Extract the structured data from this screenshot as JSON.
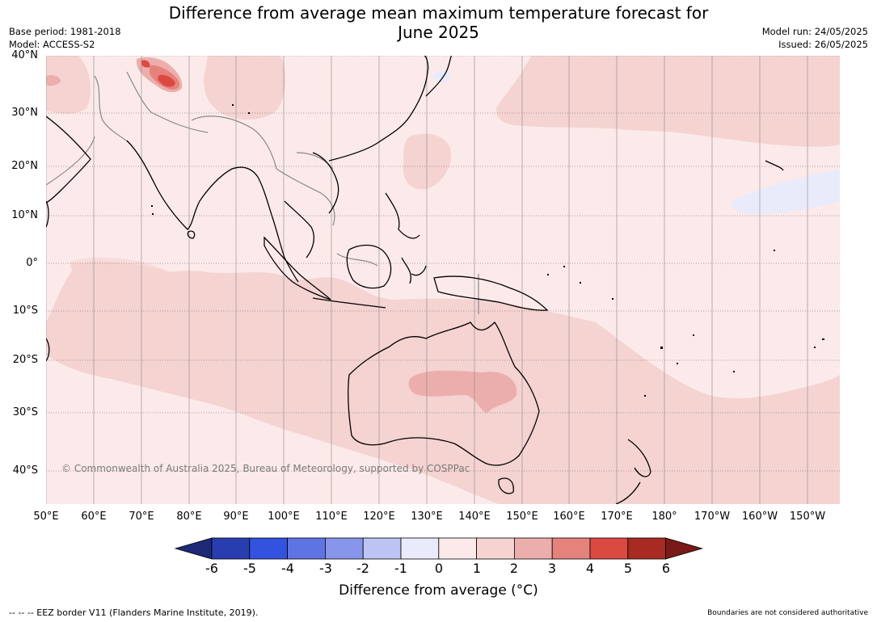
{
  "title": {
    "line1": "Difference from average mean maximum temperature forecast for",
    "line2": "June 2025"
  },
  "meta_left": {
    "base_period": "Base period: 1981-2018",
    "model": "Model: ACCESS-S2"
  },
  "meta_right": {
    "model_run": "Model run: 24/05/2025",
    "issued": "Issued: 26/05/2025"
  },
  "map": {
    "lat_labels": [
      "40°N",
      "30°N",
      "20°N",
      "10°N",
      "0°",
      "10°S",
      "20°S",
      "30°S",
      "40°S"
    ],
    "lon_labels": [
      "50°E",
      "60°E",
      "70°E",
      "80°E",
      "90°E",
      "100°E",
      "110°E",
      "120°E",
      "130°E",
      "140°E",
      "150°E",
      "160°E",
      "170°E",
      "180°",
      "170°W",
      "160°W",
      "150°W"
    ],
    "copyright": "© Commonwealth of Australia 2025, Bureau of Meteorology, supported by COSPPac",
    "fill_colors": {
      "0_to_1": "#fbeae9",
      "1_to_2": "#f4d3d1",
      "2_to_3": "#ecaeac",
      "3_to_4": "#e6827c",
      "4_to_5": "#db4a41",
      "-1_to_0": "#e9ebfa",
      "coast": "#000000",
      "border": "#888888",
      "grid": "#666666"
    }
  },
  "colorbar": {
    "ticks": [
      "-6",
      "-5",
      "-4",
      "-3",
      "-2",
      "-1",
      "0",
      "1",
      "2",
      "3",
      "4",
      "5",
      "6"
    ],
    "colors": [
      "#1c2a78",
      "#283eb0",
      "#3352e0",
      "#5f74e4",
      "#8796ea",
      "#bcc4f3",
      "#e9ebfa",
      "#fbeae9",
      "#f4d3d1",
      "#ecaeac",
      "#e6827c",
      "#db4a41",
      "#a82a22",
      "#7a1a16"
    ],
    "label": "Difference from average (°C)"
  },
  "footer": {
    "eez": "--  --  -- EEZ border V11 (Flanders Marine Institute, 2019).",
    "disclaimer": "Boundaries are not considered authoritative"
  }
}
